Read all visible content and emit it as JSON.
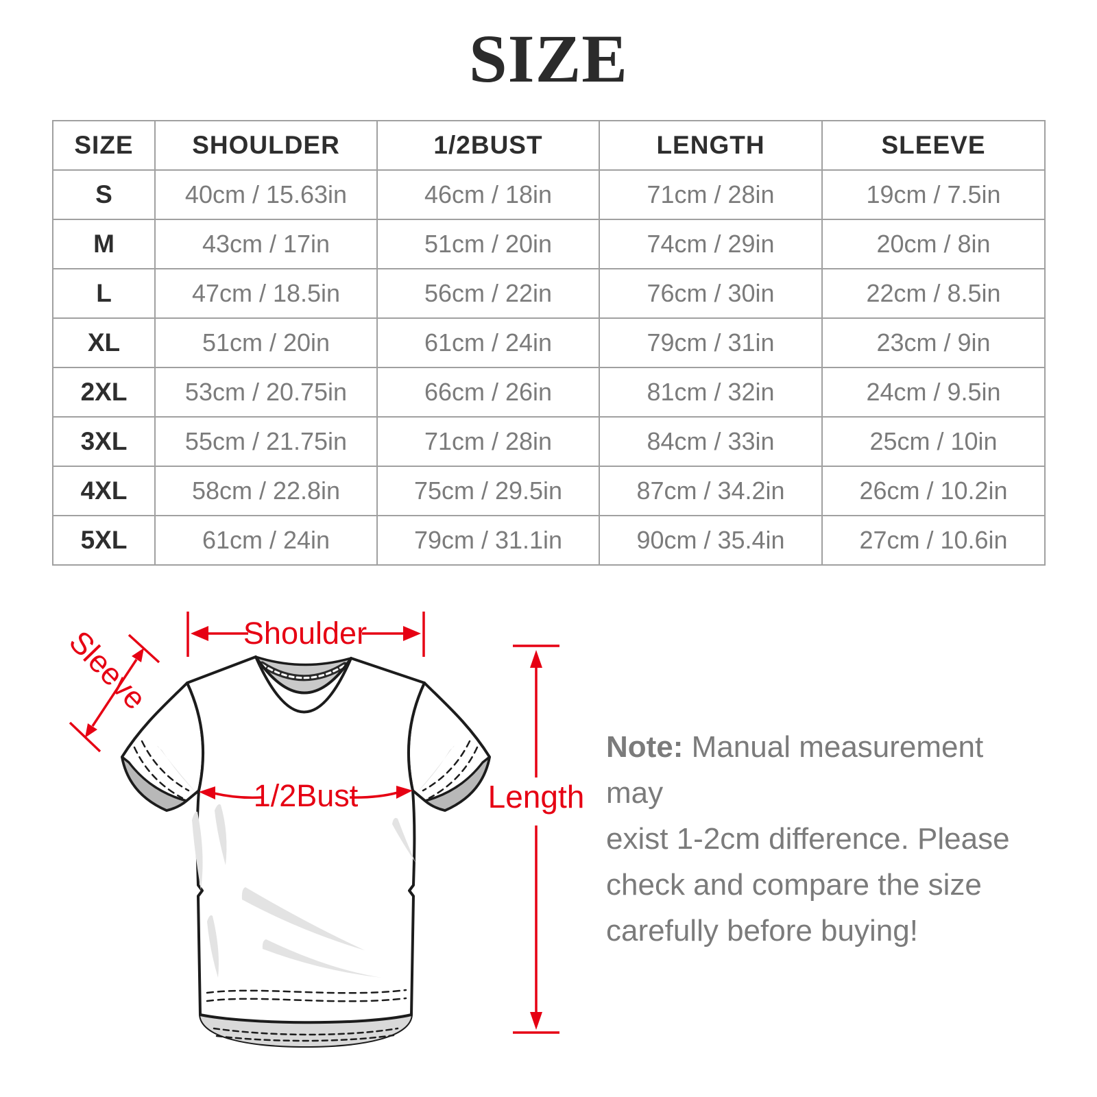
{
  "title": "SIZE",
  "table": {
    "headers": [
      "SIZE",
      "SHOULDER",
      "1/2BUST",
      "LENGTH",
      "SLEEVE"
    ],
    "rows": [
      [
        "S",
        "40cm / 15.63in",
        "46cm / 18in",
        "71cm / 28in",
        "19cm / 7.5in"
      ],
      [
        "M",
        "43cm / 17in",
        "51cm / 20in",
        "74cm / 29in",
        "20cm / 8in"
      ],
      [
        "L",
        "47cm / 18.5in",
        "56cm / 22in",
        "76cm / 30in",
        "22cm / 8.5in"
      ],
      [
        "XL",
        "51cm / 20in",
        "61cm / 24in",
        "79cm / 31in",
        "23cm / 9in"
      ],
      [
        "2XL",
        "53cm / 20.75in",
        "66cm / 26in",
        "81cm / 32in",
        "24cm / 9.5in"
      ],
      [
        "3XL",
        "55cm / 21.75in",
        "71cm / 28in",
        "84cm / 33in",
        "25cm / 10in"
      ],
      [
        "4XL",
        "58cm / 22.8in",
        "75cm / 29.5in",
        "87cm / 34.2in",
        "26cm / 10.2in"
      ],
      [
        "5XL",
        "61cm / 24in",
        "79cm / 31.1in",
        "90cm / 35.4in",
        "27cm / 10.6in"
      ]
    ]
  },
  "diagram": {
    "labels": {
      "shoulder": "Shoulder",
      "sleeve": "Sleeve",
      "bust": "1/2Bust",
      "length": "Length"
    },
    "colors": {
      "accent_red": "#e60013",
      "outline_black": "#1c1c1c",
      "collar_gray": "#c9c9c9",
      "cuff_gray": "#b8b8b8",
      "wrinkle_gray": "#e3e3e3"
    }
  },
  "note": {
    "label": "Note:",
    "lines": [
      "Manual measurement may",
      "exist 1-2cm difference. Please",
      "check and compare the size",
      "carefully before buying!"
    ]
  },
  "ui_colors": {
    "table_border": "#a0a0a0",
    "heading_text": "#2e2e2e",
    "value_text": "#7b7b7b",
    "title_text": "#2b2b2b"
  }
}
